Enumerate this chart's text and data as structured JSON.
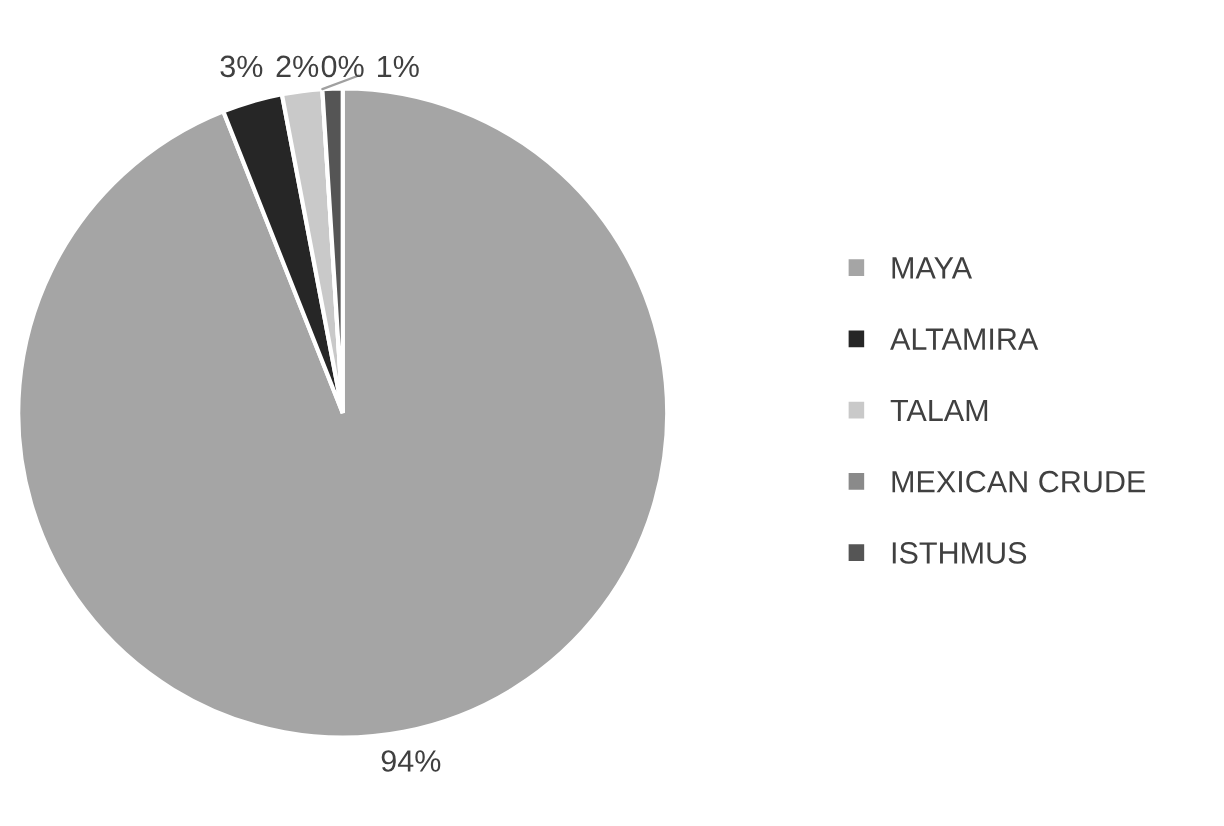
{
  "chart_data": {
    "type": "pie",
    "categories": [
      "MAYA",
      "ALTAMIRA",
      "TALAM",
      "MEXICAN CRUDE",
      "ISTHMUS"
    ],
    "values": [
      94,
      3,
      2,
      0,
      1
    ],
    "value_labels": [
      "94%",
      "3%",
      "2%",
      "0%",
      "1%"
    ],
    "colors": [
      "#a5a5a5",
      "#262626",
      "#c9c9c9",
      "#8a8a8a",
      "#555555"
    ],
    "legend": "right"
  }
}
